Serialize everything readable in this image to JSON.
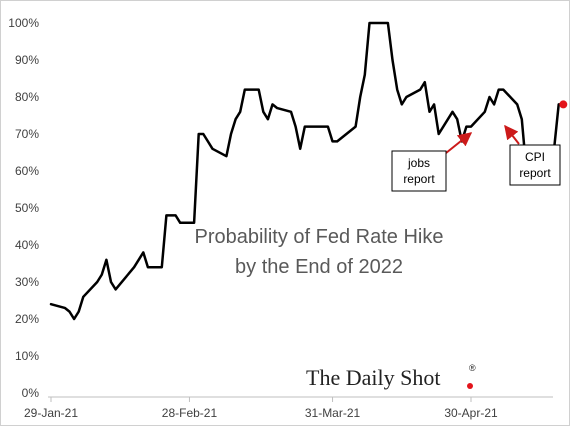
{
  "chart_data": {
    "type": "line",
    "title": "Probability of Fed Rate Hike",
    "subtitle": "by the End of 2022",
    "xlabel": "",
    "ylabel": "",
    "ylim": [
      0,
      100
    ],
    "y_ticks": [
      "0%",
      "10%",
      "20%",
      "30%",
      "40%",
      "50%",
      "60%",
      "70%",
      "80%",
      "90%",
      "100%"
    ],
    "x_tick_labels": [
      "29-Jan-21",
      "28-Feb-21",
      "31-Mar-21",
      "30-Apr-21"
    ],
    "x_tick_dates": [
      "2021-01-29",
      "2021-02-28",
      "2021-03-31",
      "2021-04-30"
    ],
    "grid": false,
    "series": [
      {
        "x": [
          "2021-01-29",
          "2021-02-01",
          "2021-02-02",
          "2021-02-03",
          "2021-02-04",
          "2021-02-05",
          "2021-02-08",
          "2021-02-09",
          "2021-02-10",
          "2021-02-11",
          "2021-02-12",
          "2021-02-16",
          "2021-02-17",
          "2021-02-18",
          "2021-02-19",
          "2021-02-22",
          "2021-02-23",
          "2021-02-24",
          "2021-02-25",
          "2021-02-26",
          "2021-03-01",
          "2021-03-02",
          "2021-03-03",
          "2021-03-04",
          "2021-03-05",
          "2021-03-08",
          "2021-03-09",
          "2021-03-10",
          "2021-03-11",
          "2021-03-12",
          "2021-03-15",
          "2021-03-16",
          "2021-03-17",
          "2021-03-18",
          "2021-03-19",
          "2021-03-22",
          "2021-03-23",
          "2021-03-24",
          "2021-03-25",
          "2021-03-26",
          "2021-03-29",
          "2021-03-30",
          "2021-03-31",
          "2021-04-01",
          "2021-04-05",
          "2021-04-06",
          "2021-04-07",
          "2021-04-08",
          "2021-04-09",
          "2021-04-12",
          "2021-04-13",
          "2021-04-14",
          "2021-04-15",
          "2021-04-16",
          "2021-04-19",
          "2021-04-20",
          "2021-04-21",
          "2021-04-22",
          "2021-04-23",
          "2021-04-26",
          "2021-04-27",
          "2021-04-28",
          "2021-04-29",
          "2021-04-30",
          "2021-05-03",
          "2021-05-04",
          "2021-05-05",
          "2021-05-06",
          "2021-05-07",
          "2021-05-10",
          "2021-05-11",
          "2021-05-12"
        ],
        "values": [
          24,
          23,
          22,
          20,
          22,
          26,
          30,
          32,
          36,
          30,
          28,
          34,
          36,
          38,
          34,
          34,
          48,
          48,
          48,
          46,
          46,
          70,
          70,
          68,
          66,
          64,
          70,
          74,
          76,
          82,
          82,
          76,
          74,
          78,
          77,
          76,
          72,
          66,
          72,
          72,
          72,
          72,
          68,
          68,
          72,
          80,
          86,
          100,
          100,
          100,
          90,
          82,
          78,
          80,
          82,
          84,
          76,
          78,
          70,
          76,
          74,
          68,
          72,
          72,
          76,
          80,
          78,
          82,
          82,
          78,
          74,
          60
        ]
      },
      {
        "x": [
          "2021-05-12",
          "2021-05-13",
          "2021-05-14",
          "2021-05-17",
          "2021-05-18",
          "2021-05-19",
          "2021-05-20"
        ],
        "values": [
          60,
          60,
          60,
          60,
          66,
          78,
          78
        ]
      }
    ],
    "highlight_point": {
      "x": "2021-05-20",
      "y": 78,
      "color": "#e3141b"
    },
    "annotations": [
      {
        "text": [
          "jobs",
          "report"
        ],
        "color": "#cc1a1a"
      },
      {
        "text": [
          "CPI",
          "report"
        ],
        "color": "#cc1a1a"
      }
    ],
    "watermark": {
      "text": "The Daily Shot",
      "mark": "®",
      "dot_color": "#e3141b"
    },
    "line_color": "#000000",
    "title_color": "#595959"
  }
}
